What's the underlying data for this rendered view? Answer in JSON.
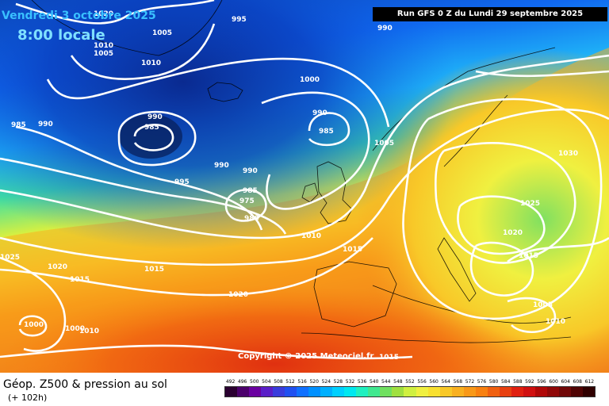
{
  "header": {
    "date_line": "Vendredi 3 octobre 2025",
    "time_line": "8:00 locale",
    "run_info": "Run GFS 0 Z du Lundi 29 septembre 2025"
  },
  "map": {
    "isobar_color": "#ffffff",
    "isobar_labels": [
      "995",
      "1020",
      "1005",
      "1010",
      "1010",
      "1000",
      "990",
      "1005",
      "985",
      "990",
      "985",
      "990",
      "990",
      "985",
      "1005",
      "1030",
      "990",
      "990",
      "995",
      "985",
      "975",
      "980",
      "1025",
      "1010",
      "1015",
      "1020",
      "1025",
      "1020",
      "1015",
      "1015",
      "1015",
      "1020",
      "1005",
      "1000",
      "1000",
      "1010",
      "1010",
      "1015"
    ],
    "copyright": "Copyright © 2025 Meteociel.fr"
  },
  "footer": {
    "product": "Géop. Z500 & pression au sol",
    "forecast_hour": "(+ 102h)"
  },
  "legend": {
    "values": [
      "492",
      "496",
      "500",
      "504",
      "508",
      "512",
      "516",
      "520",
      "524",
      "528",
      "532",
      "536",
      "540",
      "544",
      "548",
      "552",
      "556",
      "560",
      "564",
      "568",
      "572",
      "576",
      "580",
      "584",
      "588",
      "592",
      "596",
      "600",
      "604",
      "608",
      "612"
    ],
    "colors": [
      "#2a0030",
      "#4b006b",
      "#6a00a0",
      "#5a1ec8",
      "#3a3cdc",
      "#2050f0",
      "#1070ff",
      "#0090ff",
      "#00b0ff",
      "#00d0ff",
      "#00e8f0",
      "#20f0c0",
      "#40e890",
      "#70e060",
      "#a0e040",
      "#d0f040",
      "#f0f040",
      "#f8e030",
      "#f8c828",
      "#f8b020",
      "#f89818",
      "#f88010",
      "#f06010",
      "#e84010",
      "#e02010",
      "#d01010",
      "#b00808",
      "#900808",
      "#700808",
      "#500404",
      "#300000"
    ]
  }
}
